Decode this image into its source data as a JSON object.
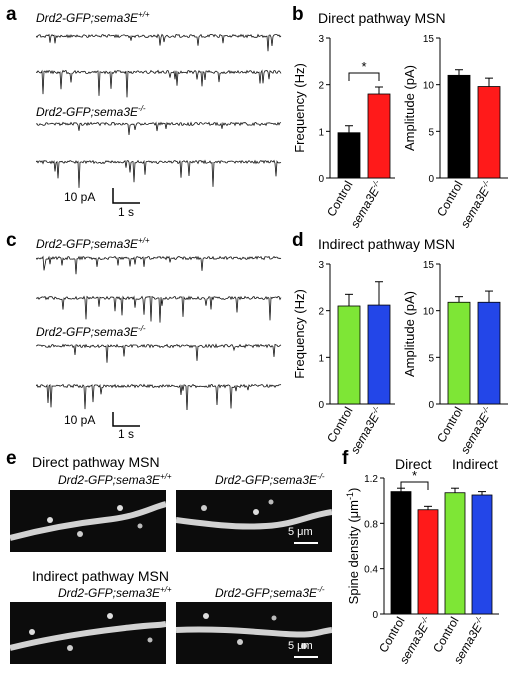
{
  "panels": {
    "a": {
      "label": "a",
      "genotype_wt": "Drd2-GFP;sema3E",
      "sup_wt": "+/+",
      "genotype_ko": "Drd2-GFP;sema3E",
      "sup_ko": "-/-",
      "scale_y": "10 pA",
      "scale_x": "1 s"
    },
    "b": {
      "label": "b",
      "title": "Direct pathway MSN"
    },
    "c": {
      "label": "c",
      "genotype_wt": "Drd2-GFP;sema3E",
      "sup_wt": "+/+",
      "genotype_ko": "Drd2-GFP;sema3E",
      "sup_ko": "-/-",
      "scale_y": "10 pA",
      "scale_x": "1 s"
    },
    "d": {
      "label": "d",
      "title": "Indirect pathway MSN"
    },
    "e": {
      "label": "e",
      "title_direct": "Direct pathway MSN",
      "title_indirect": "Indirect pathway MSN",
      "genotype_wt": "Drd2-GFP;sema3E",
      "sup_wt": "+/+",
      "genotype_ko": "Drd2-GFP;sema3E",
      "sup_ko": "-/-",
      "scale": "5 μm"
    },
    "f": {
      "label": "f",
      "group_direct": "Direct",
      "group_indirect": "Indirect",
      "ylabel": "Spine density (μm",
      "ylabel_sup": "-1",
      "ylabel_end": ")"
    }
  },
  "colors": {
    "control_direct": "#000000",
    "ko_direct": "#ff1a1a",
    "control_indirect": "#7ee636",
    "ko_indirect": "#2346e8"
  },
  "chart_data": [
    {
      "id": "b-frequency",
      "type": "bar",
      "ylabel": "Frequency (Hz)",
      "ylim": [
        0,
        3
      ],
      "yticks": [
        0,
        1,
        2,
        3
      ],
      "categories": [
        "Control",
        "sema3E"
      ],
      "category_sup": [
        "",
        "-/-"
      ],
      "values": [
        0.97,
        1.8
      ],
      "errors": [
        0.15,
        0.15
      ],
      "colors": [
        "#000000",
        "#ff1a1a"
      ],
      "significance": "*"
    },
    {
      "id": "b-amplitude",
      "type": "bar",
      "ylabel": "Amplitude (pA)",
      "ylim": [
        0,
        15
      ],
      "yticks": [
        0,
        5,
        10,
        15
      ],
      "categories": [
        "Control",
        "sema3E"
      ],
      "category_sup": [
        "",
        "-/-"
      ],
      "values": [
        11.0,
        9.8
      ],
      "errors": [
        0.6,
        0.9
      ],
      "colors": [
        "#000000",
        "#ff1a1a"
      ],
      "significance": ""
    },
    {
      "id": "d-frequency",
      "type": "bar",
      "ylabel": "Frequency (Hz)",
      "ylim": [
        0,
        3
      ],
      "yticks": [
        0,
        1,
        2,
        3
      ],
      "categories": [
        "Control",
        "sema3E"
      ],
      "category_sup": [
        "",
        "-/-"
      ],
      "values": [
        2.1,
        2.12
      ],
      "errors": [
        0.25,
        0.5
      ],
      "colors": [
        "#7ee636",
        "#2346e8"
      ],
      "significance": ""
    },
    {
      "id": "d-amplitude",
      "type": "bar",
      "ylabel": "Amplitude (pA)",
      "ylim": [
        0,
        15
      ],
      "yticks": [
        0,
        5,
        10,
        15
      ],
      "categories": [
        "Control",
        "sema3E"
      ],
      "category_sup": [
        "",
        "-/-"
      ],
      "values": [
        10.9,
        10.9
      ],
      "errors": [
        0.6,
        1.2
      ],
      "colors": [
        "#7ee636",
        "#2346e8"
      ],
      "significance": ""
    },
    {
      "id": "f-spine-density",
      "type": "bar",
      "ylabel": "Spine density (μm-1)",
      "ylim": [
        0,
        1.2
      ],
      "yticks": [
        0,
        0.4,
        0.8,
        1.2
      ],
      "categories": [
        "Control",
        "sema3E",
        "Control",
        "sema3E"
      ],
      "category_sup": [
        "",
        "-/-",
        "",
        "-/-"
      ],
      "values": [
        1.08,
        0.92,
        1.07,
        1.05
      ],
      "errors": [
        0.03,
        0.03,
        0.04,
        0.03
      ],
      "colors": [
        "#000000",
        "#ff1a1a",
        "#7ee636",
        "#2346e8"
      ],
      "significance": "*"
    }
  ]
}
